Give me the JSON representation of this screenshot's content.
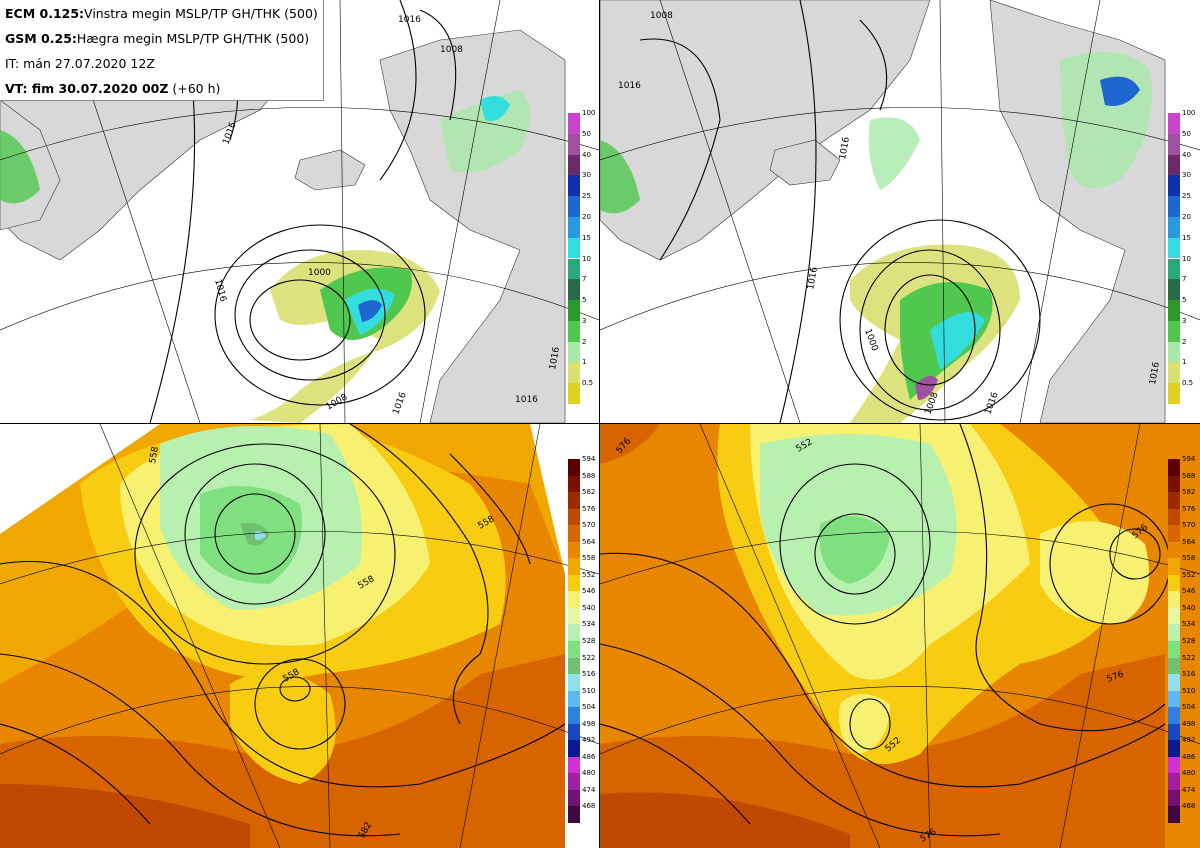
{
  "header": {
    "line1_bold": "ECM 0.125:",
    "line1_text": "Vinstra megin MSLP/TP GH/THK (500)",
    "line2_bold": "GSM 0.25:",
    "line2_text": "Hægra megin MSLP/TP GH/THK (500)",
    "line3_text": "IT: mán 27.07.2020 12Z",
    "line4_bold": "VT: fim 30.07.2020 00Z",
    "line4_text": " (+60 h)"
  },
  "precip_colorbar": {
    "levels": [
      "100",
      "50",
      "40",
      "30",
      "25",
      "20",
      "15",
      "10",
      "7",
      "5",
      "3",
      "2",
      "1",
      "0.5"
    ],
    "colors": [
      "#cc44cc",
      "#a050a0",
      "#6a2a6a",
      "#1030b0",
      "#1e66d0",
      "#2a9ae0",
      "#33dddd",
      "#2aa87a",
      "#2a6a4a",
      "#2a9a2a",
      "#50c850",
      "#a8e8a8",
      "#d8e070",
      "#e0d020"
    ]
  },
  "thickness_colorbar": {
    "levels": [
      "594",
      "588",
      "582",
      "576",
      "570",
      "564",
      "558",
      "552",
      "546",
      "540",
      "534",
      "528",
      "522",
      "516",
      "510",
      "504",
      "498",
      "492",
      "486",
      "480",
      "474",
      "468"
    ],
    "colors": [
      "#5a0000",
      "#7a1000",
      "#9a2a00",
      "#c04800",
      "#d86400",
      "#e88600",
      "#f0a800",
      "#f8cc10",
      "#f8f070",
      "#e8f8a0",
      "#b8f0b0",
      "#80e080",
      "#70c070",
      "#90e0f0",
      "#60b8f0",
      "#3080e0",
      "#1848c0",
      "#0a1a90",
      "#d030d0",
      "#a020a0",
      "#701070",
      "#400840"
    ]
  },
  "map_labels": {
    "tl_isobars": [
      "1016",
      "1008",
      "1016",
      "1000",
      "1016",
      "1008",
      "1016",
      "1016",
      "1016"
    ],
    "tr_isobars": [
      "1016",
      "1008",
      "1016",
      "1016",
      "1000",
      "1008",
      "1016",
      "1016"
    ],
    "bl_contours": [
      "558",
      "558",
      "558",
      "558",
      "582"
    ],
    "br_contours": [
      "576",
      "552",
      "552",
      "576",
      "576",
      "576"
    ]
  }
}
